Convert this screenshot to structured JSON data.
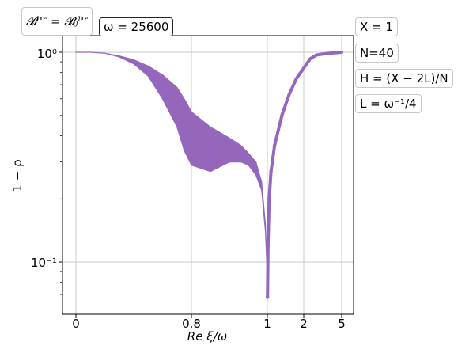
{
  "chart_data": {
    "type": "area",
    "series_color": "#9467bd",
    "y_scale": "log",
    "ylim": [
      0.066,
      1.05
    ],
    "ylabel": "1 − ρ",
    "xlabel": "Re ξ/ω",
    "x_ticks": [
      "0",
      "0.8",
      "1",
      "2",
      "5"
    ],
    "y_ticks": [
      "10⁰",
      "10⁻¹"
    ],
    "grid": true,
    "annotations": {
      "top_left": "𝓑ˡ'ʳ = 𝓑ⱼˡ'ʳ",
      "omega": "ω = 25600",
      "right": [
        "X = 1",
        "N=40",
        "H = (X − 2L)/N",
        "L = ω⁻¹/4"
      ]
    },
    "band": {
      "x_ticks_note": "x positions are on the nonuniform tick scale: 0, 0.8, 1, 2, 5",
      "upper": [
        [
          0,
          1.0
        ],
        [
          0.1,
          1.0
        ],
        [
          0.2,
          0.99
        ],
        [
          0.3,
          0.96
        ],
        [
          0.4,
          0.92
        ],
        [
          0.5,
          0.86
        ],
        [
          0.6,
          0.78
        ],
        [
          0.7,
          0.68
        ],
        [
          0.75,
          0.6
        ],
        [
          0.8,
          0.52
        ],
        [
          0.85,
          0.44
        ],
        [
          0.9,
          0.39
        ],
        [
          0.93,
          0.36
        ],
        [
          0.95,
          0.33
        ],
        [
          0.97,
          0.3
        ],
        [
          0.985,
          0.24
        ],
        [
          0.995,
          0.15
        ],
        [
          1.0,
          0.09
        ],
        [
          1.005,
          0.07
        ]
      ],
      "lower": [
        [
          0,
          1.0
        ],
        [
          0.1,
          1.0
        ],
        [
          0.2,
          0.99
        ],
        [
          0.3,
          0.95
        ],
        [
          0.4,
          0.88
        ],
        [
          0.5,
          0.77
        ],
        [
          0.6,
          0.6
        ],
        [
          0.7,
          0.44
        ],
        [
          0.75,
          0.34
        ],
        [
          0.8,
          0.29
        ],
        [
          0.85,
          0.27
        ],
        [
          0.9,
          0.3
        ],
        [
          0.93,
          0.3
        ],
        [
          0.95,
          0.29
        ],
        [
          0.97,
          0.26
        ],
        [
          0.985,
          0.22
        ],
        [
          0.995,
          0.14
        ],
        [
          1.0,
          0.085
        ],
        [
          1.005,
          0.068
        ]
      ],
      "right_branch": [
        [
          1.005,
          0.068
        ],
        [
          1.02,
          0.12
        ],
        [
          1.05,
          0.2
        ],
        [
          1.1,
          0.27
        ],
        [
          1.2,
          0.36
        ],
        [
          1.4,
          0.5
        ],
        [
          1.6,
          0.63
        ],
        [
          1.8,
          0.75
        ],
        [
          2.0,
          0.84
        ],
        [
          2.5,
          0.93
        ],
        [
          3.0,
          0.97
        ],
        [
          4.0,
          0.99
        ],
        [
          5.0,
          1.0
        ]
      ]
    }
  }
}
